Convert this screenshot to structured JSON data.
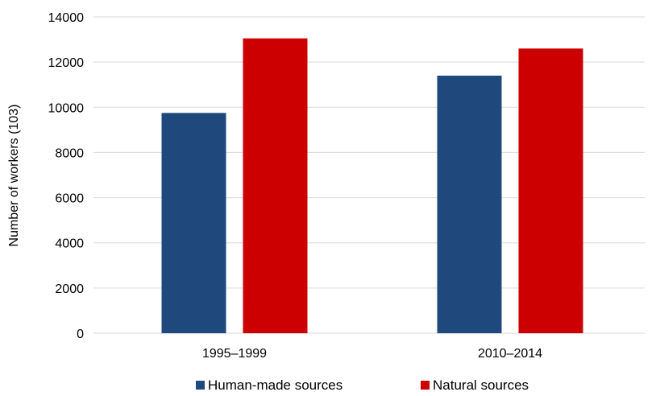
{
  "chart_data": {
    "type": "bar",
    "categories": [
      "1995–1999",
      "2010–2014"
    ],
    "series": [
      {
        "name": "Human-made sources",
        "values": [
          9750,
          11400
        ],
        "color": "#1f497d"
      },
      {
        "name": "Natural sources",
        "values": [
          13050,
          12600
        ],
        "color": "#cc0000"
      }
    ],
    "title": "",
    "xlabel": "",
    "ylabel": "Number of workers (103)",
    "ylim": [
      0,
      14000
    ],
    "yticks": [
      "0",
      "2000",
      "4000",
      "6000",
      "8000",
      "10000",
      "12000",
      "14000"
    ],
    "grid": true,
    "legend": "bottom"
  }
}
